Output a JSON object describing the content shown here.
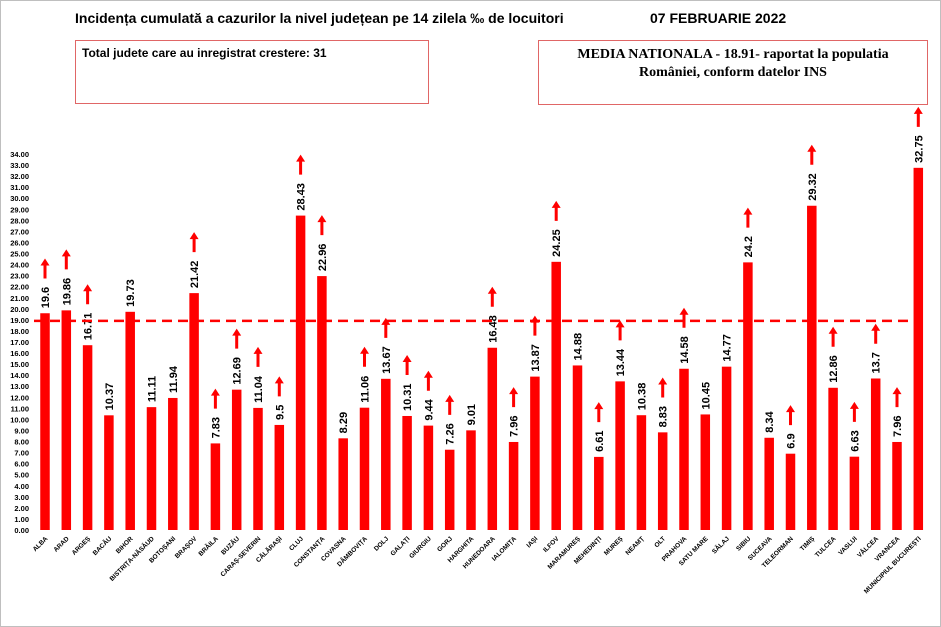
{
  "header": {
    "title": "Incidența cumulată a cazurilor la nivel județean pe 14 zilela ‰ de locuitori",
    "date": "07 FEBRUARIE 2022"
  },
  "info_left": "Total judete care au inregistrat crestere: 31",
  "info_right": {
    "line1": "MEDIA NATIONALA  - 18.91-  raportat la populatia",
    "line2": "României, conform datelor INS"
  },
  "colors": {
    "bar": "#ff0000",
    "reference_line": "#ff0000",
    "arrow": "#ff0000"
  },
  "icons": {
    "increase": "arrow-up-icon"
  },
  "chart_data": {
    "type": "bar",
    "title": "Incidența cumulată a cazurilor la nivel județean pe 14 zilela ‰ de locuitori",
    "categories": [
      "ALBA",
      "ARAD",
      "ARGEȘ",
      "BACĂU",
      "BIHOR",
      "BISTRIȚA-NĂSĂUD",
      "BOTOȘANI",
      "BRAȘOV",
      "BRĂILA",
      "BUZĂU",
      "CARAȘ-SEVERIN",
      "CĂLĂRAȘI",
      "CLUJ",
      "CONSTANȚA",
      "COVASNA",
      "DÂMBOVIȚA",
      "DOLJ",
      "GALAȚI",
      "GIURGIU",
      "GORJ",
      "HARGHITA",
      "HUNEDOARA",
      "IALOMIȚA",
      "IAȘI",
      "ILFOV",
      "MARAMUREȘ",
      "MEHEDINȚI",
      "MUREȘ",
      "NEAMȚ",
      "OLT",
      "PRAHOVA",
      "SATU MARE",
      "SĂLAJ",
      "SIBIU",
      "SUCEAVA",
      "TELEORMAN",
      "TIMIȘ",
      "TULCEA",
      "VASLUI",
      "VÂLCEA",
      "VRANCEA",
      "MUNICIPIUL BUCUREȘTI"
    ],
    "values": [
      19.6,
      19.86,
      16.71,
      10.37,
      19.73,
      11.11,
      11.94,
      21.42,
      7.83,
      12.69,
      11.04,
      9.5,
      28.43,
      22.96,
      8.29,
      11.06,
      13.67,
      10.31,
      9.44,
      7.26,
      9.01,
      16.48,
      7.96,
      13.87,
      24.25,
      14.88,
      6.61,
      13.44,
      10.38,
      8.83,
      14.58,
      10.45,
      14.77,
      24.2,
      8.34,
      6.9,
      29.32,
      12.86,
      6.63,
      13.7,
      7.96,
      32.75
    ],
    "value_labels": [
      "19.6",
      "19.86",
      "16.71",
      "10.37",
      "19.73",
      "11.11",
      "11.94",
      "21.42",
      "7.83",
      "12.69",
      "11.04",
      "9.5",
      "28.43",
      "22.96",
      "8.29",
      "11.06",
      "13.67",
      "10.31",
      "9.44",
      "7.26",
      "9.01",
      "16.48",
      "7.96",
      "13.87",
      "24.25",
      "14.88",
      "6.61",
      "13.44",
      "10.38",
      "8.83",
      "14.58",
      "10.45",
      "14.77",
      "24.2",
      "8.34",
      "6.9",
      "29.32",
      "12.86",
      "6.63",
      "13.7",
      "7.96",
      "32.75"
    ],
    "increase": [
      true,
      true,
      true,
      false,
      false,
      false,
      false,
      true,
      true,
      true,
      true,
      true,
      true,
      true,
      false,
      true,
      true,
      true,
      true,
      true,
      false,
      true,
      true,
      true,
      true,
      false,
      true,
      true,
      false,
      true,
      true,
      false,
      false,
      true,
      false,
      true,
      true,
      true,
      true,
      true,
      true,
      true
    ],
    "reference_line": 18.91,
    "ylim": [
      0,
      34
    ],
    "yticks": [
      "0.00",
      "1.00",
      "2.00",
      "3.00",
      "4.00",
      "5.00",
      "6.00",
      "7.00",
      "8.00",
      "9.00",
      "10.00",
      "11.00",
      "12.00",
      "13.00",
      "14.00",
      "15.00",
      "16.00",
      "17.00",
      "18.00",
      "19.00",
      "20.00",
      "21.00",
      "22.00",
      "23.00",
      "24.00",
      "25.00",
      "26.00",
      "27.00",
      "28.00",
      "29.00",
      "30.00",
      "31.00",
      "32.00",
      "33.00",
      "34.00"
    ],
    "grid": false,
    "legend": "none"
  }
}
